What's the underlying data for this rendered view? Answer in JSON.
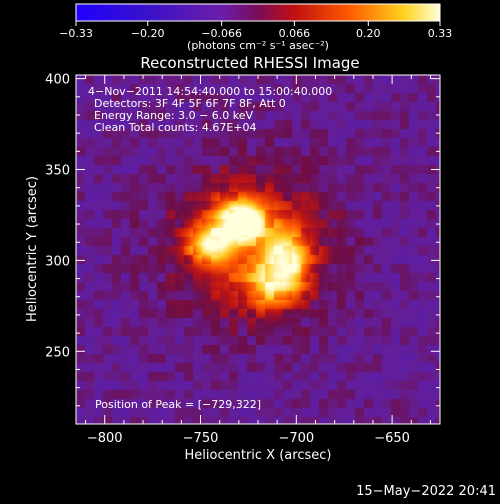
{
  "chart_data": {
    "type": "heatmap",
    "title": "Reconstructed RHESSI Image",
    "xlabel": "Heliocentric X (arcsec)",
    "ylabel": "Heliocentric Y (arcsec)",
    "xlim": [
      -815,
      -625
    ],
    "ylim": [
      210,
      402
    ],
    "x_ticks": [
      -800,
      -750,
      -700,
      -650
    ],
    "x_tick_labels": [
      "−800",
      "−750",
      "−700",
      "−650"
    ],
    "y_ticks": [
      250,
      300,
      350,
      400
    ],
    "y_tick_labels": [
      "250",
      "300",
      "350",
      "400"
    ],
    "colorbar": {
      "min": -0.33,
      "max": 0.33,
      "tick_values": [
        -0.33,
        -0.2,
        -0.066,
        0.066,
        0.2,
        0.33
      ],
      "tick_labels": [
        "−0.33",
        "−0.20",
        "−0.066",
        "0.066",
        "0.20",
        "0.33"
      ],
      "unit_label": "(photons cm⁻² s⁻¹ asec⁻²)"
    },
    "annotations": [
      "4−Nov−2011 14:54:40.000 to 15:00:40.000",
      "Detectors: 3F 4F 5F 6F 7F 8F, Att 0",
      "Energy Range: 3.0 − 6.0 keV",
      "Clean    Total counts: 4.67E+04"
    ],
    "peak_label": "Position of Peak = [−729,322]",
    "peak": [
      -729,
      322
    ],
    "sources": [
      {
        "x": -729,
        "y": 322,
        "value": 0.33,
        "sx": 9,
        "sy": 8
      },
      {
        "x": -745,
        "y": 308,
        "value": 0.24,
        "sx": 8,
        "sy": 7
      },
      {
        "x": -705,
        "y": 302,
        "value": 0.22,
        "sx": 9,
        "sy": 10
      },
      {
        "x": -712,
        "y": 285,
        "value": 0.16,
        "sx": 11,
        "sy": 9
      },
      {
        "x": -725,
        "y": 310,
        "value": 0.12,
        "sx": 28,
        "sy": 28
      }
    ],
    "background_level": -0.066
  },
  "footer": {
    "timestamp": "15−May−2022 20:41"
  }
}
